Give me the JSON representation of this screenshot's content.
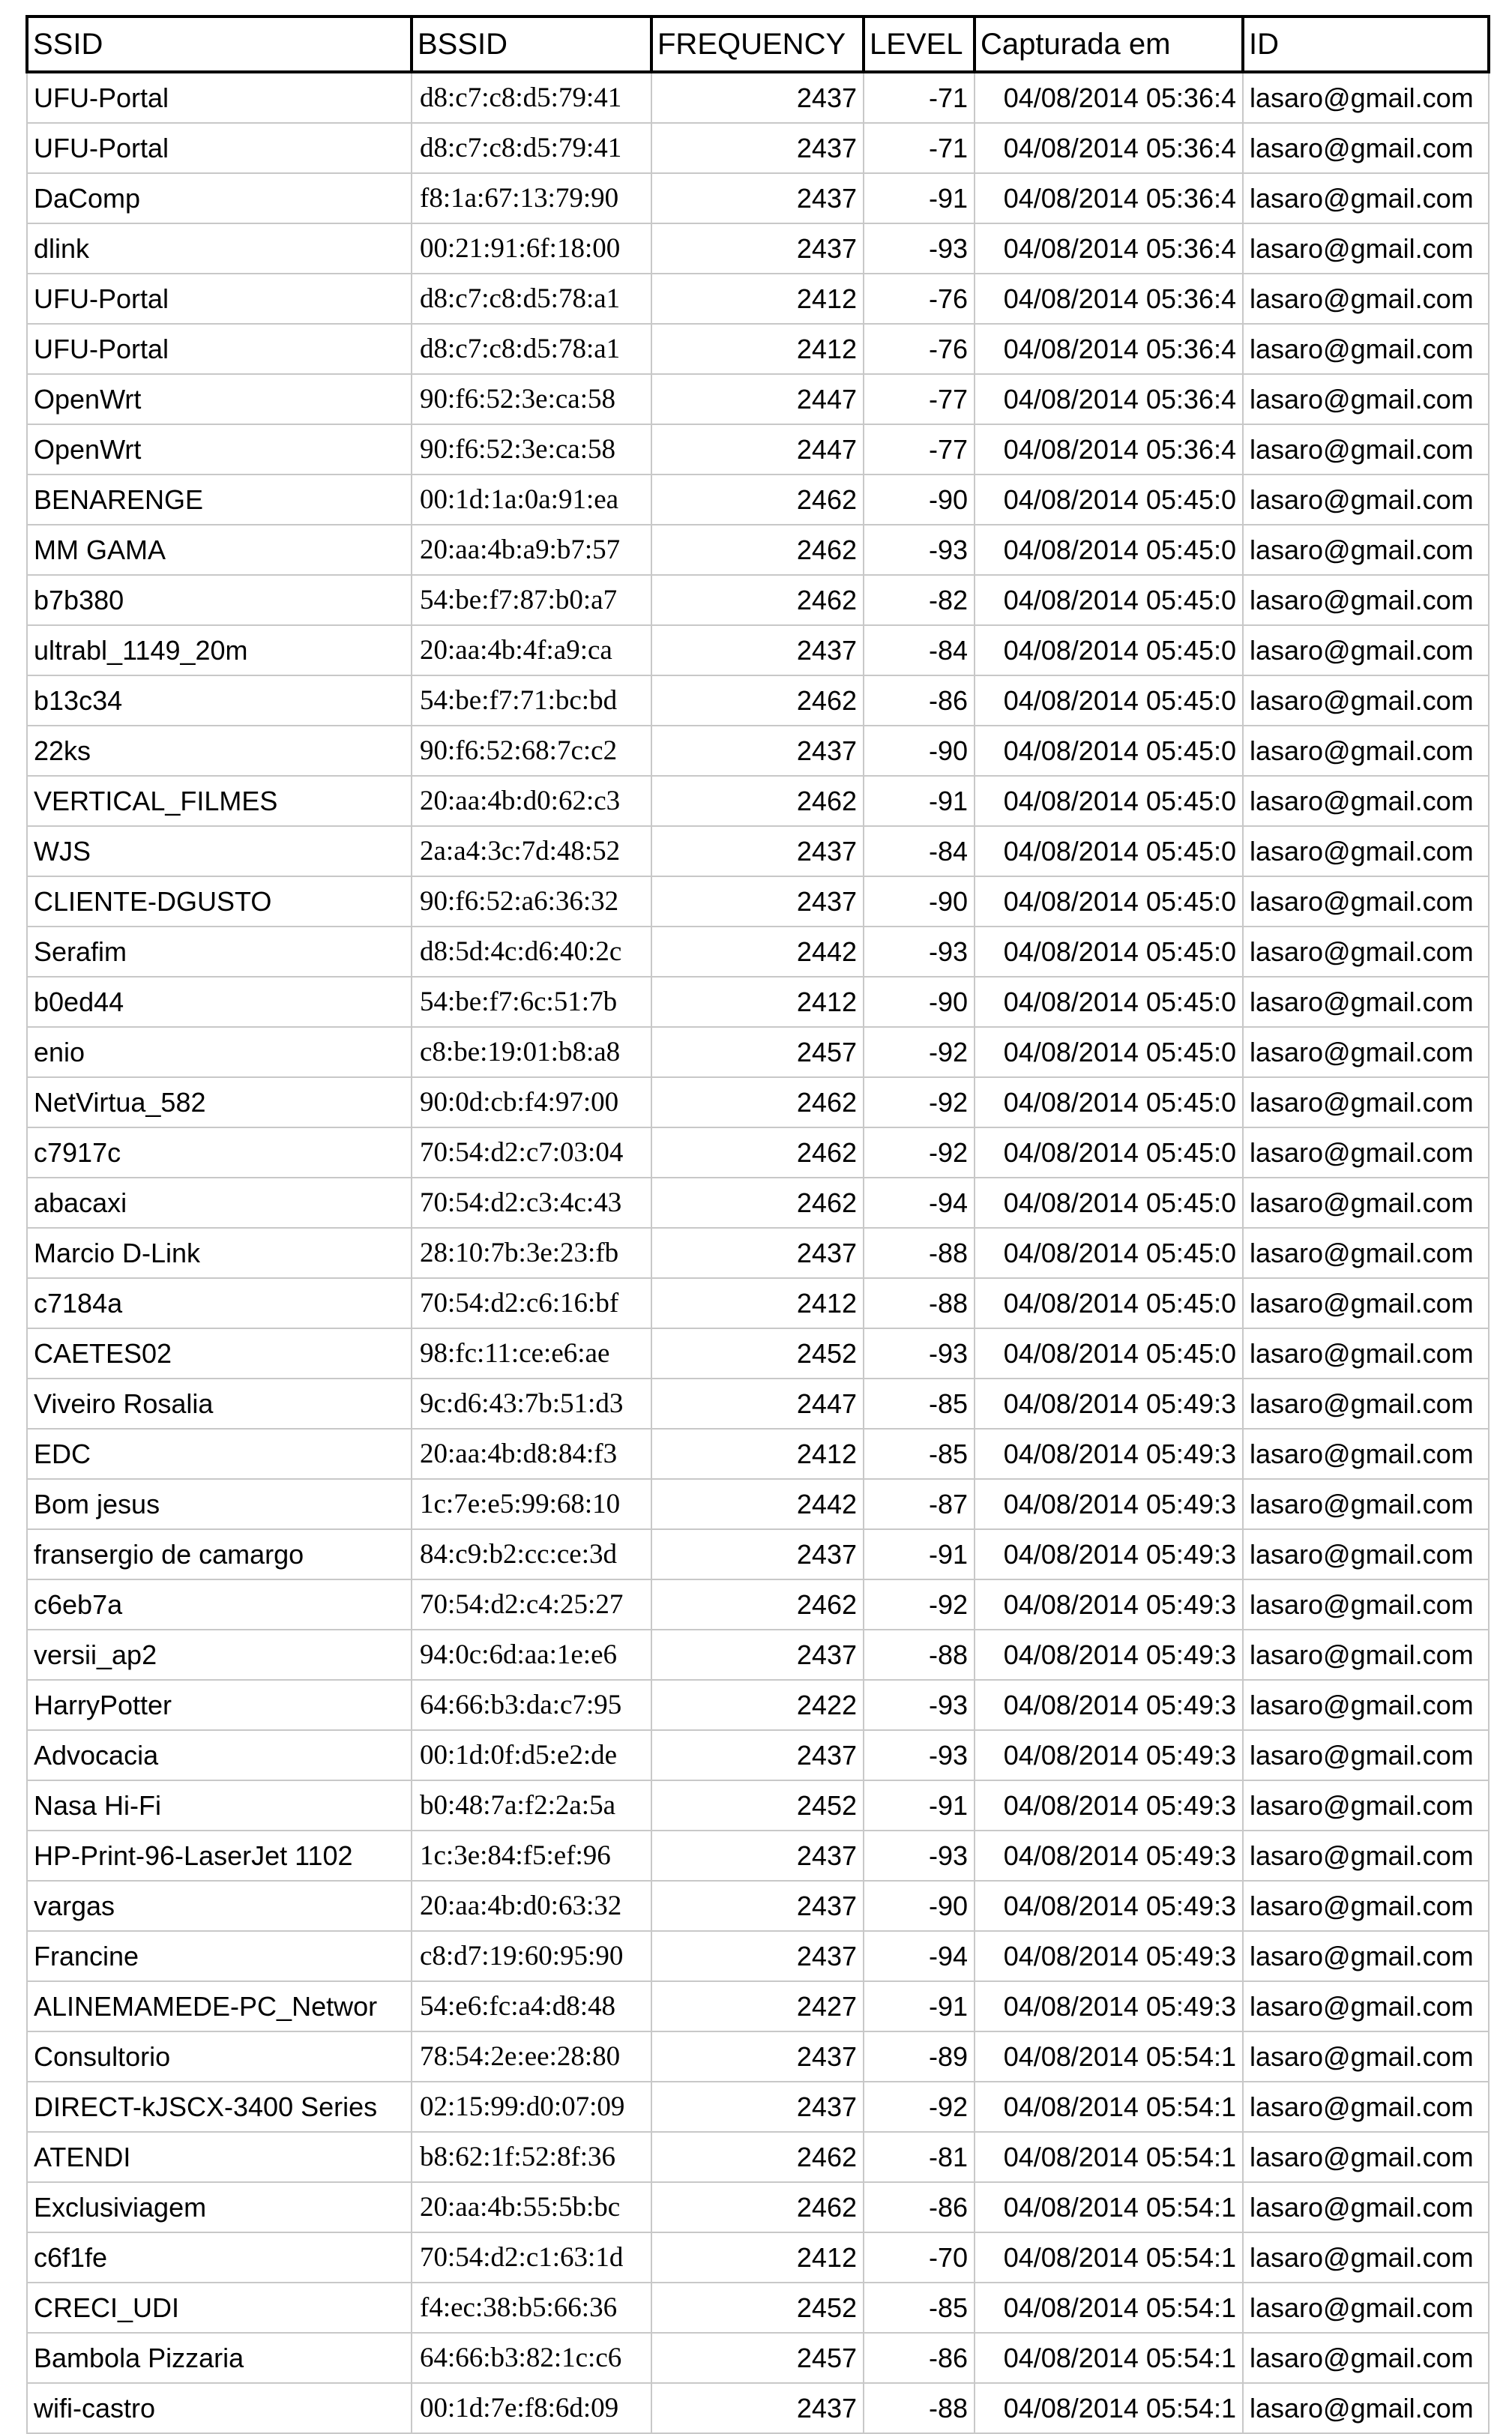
{
  "headers": {
    "ssid": "SSID",
    "bssid": "BSSID",
    "frequency": "FREQUENCY",
    "level": "LEVEL",
    "captured": "Capturada em",
    "id": "ID"
  },
  "rows": [
    [
      "UFU-Portal",
      "d8:c7:c8:d5:79:41",
      "2437",
      "-71",
      "04/08/2014 05:36:4",
      "lasaro@gmail.com"
    ],
    [
      "UFU-Portal",
      "d8:c7:c8:d5:79:41",
      "2437",
      "-71",
      "04/08/2014 05:36:4",
      "lasaro@gmail.com"
    ],
    [
      "DaComp",
      "f8:1a:67:13:79:90",
      "2437",
      "-91",
      "04/08/2014 05:36:4",
      "lasaro@gmail.com"
    ],
    [
      "dlink",
      "00:21:91:6f:18:00",
      "2437",
      "-93",
      "04/08/2014 05:36:4",
      "lasaro@gmail.com"
    ],
    [
      "UFU-Portal",
      "d8:c7:c8:d5:78:a1",
      "2412",
      "-76",
      "04/08/2014 05:36:4",
      "lasaro@gmail.com"
    ],
    [
      "UFU-Portal",
      "d8:c7:c8:d5:78:a1",
      "2412",
      "-76",
      "04/08/2014 05:36:4",
      "lasaro@gmail.com"
    ],
    [
      "OpenWrt",
      "90:f6:52:3e:ca:58",
      "2447",
      "-77",
      "04/08/2014 05:36:4",
      "lasaro@gmail.com"
    ],
    [
      "OpenWrt",
      "90:f6:52:3e:ca:58",
      "2447",
      "-77",
      "04/08/2014 05:36:4",
      "lasaro@gmail.com"
    ],
    [
      "BENARENGE",
      "00:1d:1a:0a:91:ea",
      "2462",
      "-90",
      "04/08/2014 05:45:0",
      "lasaro@gmail.com"
    ],
    [
      "MM GAMA",
      "20:aa:4b:a9:b7:57",
      "2462",
      "-93",
      "04/08/2014 05:45:0",
      "lasaro@gmail.com"
    ],
    [
      "b7b380",
      "54:be:f7:87:b0:a7",
      "2462",
      "-82",
      "04/08/2014 05:45:0",
      "lasaro@gmail.com"
    ],
    [
      "ultrabl_1149_20m",
      "20:aa:4b:4f:a9:ca",
      "2437",
      "-84",
      "04/08/2014 05:45:0",
      "lasaro@gmail.com"
    ],
    [
      "b13c34",
      "54:be:f7:71:bc:bd",
      "2462",
      "-86",
      "04/08/2014 05:45:0",
      "lasaro@gmail.com"
    ],
    [
      "22ks",
      "90:f6:52:68:7c:c2",
      "2437",
      "-90",
      "04/08/2014 05:45:0",
      "lasaro@gmail.com"
    ],
    [
      "VERTICAL_FILMES",
      "20:aa:4b:d0:62:c3",
      "2462",
      "-91",
      "04/08/2014 05:45:0",
      "lasaro@gmail.com"
    ],
    [
      "WJS",
      "2a:a4:3c:7d:48:52",
      "2437",
      "-84",
      "04/08/2014 05:45:0",
      "lasaro@gmail.com"
    ],
    [
      "CLIENTE-DGUSTO",
      "90:f6:52:a6:36:32",
      "2437",
      "-90",
      "04/08/2014 05:45:0",
      "lasaro@gmail.com"
    ],
    [
      "Serafim",
      "d8:5d:4c:d6:40:2c",
      "2442",
      "-93",
      "04/08/2014 05:45:0",
      "lasaro@gmail.com"
    ],
    [
      "b0ed44",
      "54:be:f7:6c:51:7b",
      "2412",
      "-90",
      "04/08/2014 05:45:0",
      "lasaro@gmail.com"
    ],
    [
      "enio",
      "c8:be:19:01:b8:a8",
      "2457",
      "-92",
      "04/08/2014 05:45:0",
      "lasaro@gmail.com"
    ],
    [
      "NetVirtua_582",
      "90:0d:cb:f4:97:00",
      "2462",
      "-92",
      "04/08/2014 05:45:0",
      "lasaro@gmail.com"
    ],
    [
      "c7917c",
      "70:54:d2:c7:03:04",
      "2462",
      "-92",
      "04/08/2014 05:45:0",
      "lasaro@gmail.com"
    ],
    [
      "abacaxi",
      "70:54:d2:c3:4c:43",
      "2462",
      "-94",
      "04/08/2014 05:45:0",
      "lasaro@gmail.com"
    ],
    [
      "Marcio D-Link",
      "28:10:7b:3e:23:fb",
      "2437",
      "-88",
      "04/08/2014 05:45:0",
      "lasaro@gmail.com"
    ],
    [
      "c7184a",
      "70:54:d2:c6:16:bf",
      "2412",
      "-88",
      "04/08/2014 05:45:0",
      "lasaro@gmail.com"
    ],
    [
      "CAETES02",
      "98:fc:11:ce:e6:ae",
      "2452",
      "-93",
      "04/08/2014 05:45:0",
      "lasaro@gmail.com"
    ],
    [
      "Viveiro Rosalia",
      "9c:d6:43:7b:51:d3",
      "2447",
      "-85",
      "04/08/2014 05:49:3",
      "lasaro@gmail.com"
    ],
    [
      "EDC",
      "20:aa:4b:d8:84:f3",
      "2412",
      "-85",
      "04/08/2014 05:49:3",
      "lasaro@gmail.com"
    ],
    [
      "Bom jesus",
      "1c:7e:e5:99:68:10",
      "2442",
      "-87",
      "04/08/2014 05:49:3",
      "lasaro@gmail.com"
    ],
    [
      "fransergio de camargo",
      "84:c9:b2:cc:ce:3d",
      "2437",
      "-91",
      "04/08/2014 05:49:3",
      "lasaro@gmail.com"
    ],
    [
      "c6eb7a",
      "70:54:d2:c4:25:27",
      "2462",
      "-92",
      "04/08/2014 05:49:3",
      "lasaro@gmail.com"
    ],
    [
      "versii_ap2",
      "94:0c:6d:aa:1e:e6",
      "2437",
      "-88",
      "04/08/2014 05:49:3",
      "lasaro@gmail.com"
    ],
    [
      "HarryPotter",
      "64:66:b3:da:c7:95",
      "2422",
      "-93",
      "04/08/2014 05:49:3",
      "lasaro@gmail.com"
    ],
    [
      "Advocacia",
      "00:1d:0f:d5:e2:de",
      "2437",
      "-93",
      "04/08/2014 05:49:3",
      "lasaro@gmail.com"
    ],
    [
      "Nasa Hi-Fi",
      "b0:48:7a:f2:2a:5a",
      "2452",
      "-91",
      "04/08/2014 05:49:3",
      "lasaro@gmail.com"
    ],
    [
      "HP-Print-96-LaserJet 1102",
      "1c:3e:84:f5:ef:96",
      "2437",
      "-93",
      "04/08/2014 05:49:3",
      "lasaro@gmail.com"
    ],
    [
      "vargas",
      "20:aa:4b:d0:63:32",
      "2437",
      "-90",
      "04/08/2014 05:49:3",
      "lasaro@gmail.com"
    ],
    [
      "Francine",
      "c8:d7:19:60:95:90",
      "2437",
      "-94",
      "04/08/2014 05:49:3",
      "lasaro@gmail.com"
    ],
    [
      "ALINEMAMEDE-PC_Networ",
      "54:e6:fc:a4:d8:48",
      "2427",
      "-91",
      "04/08/2014 05:49:3",
      "lasaro@gmail.com"
    ],
    [
      "Consultorio",
      "78:54:2e:ee:28:80",
      "2437",
      "-89",
      "04/08/2014 05:54:1",
      "lasaro@gmail.com"
    ],
    [
      "DIRECT-kJSCX-3400 Series",
      "02:15:99:d0:07:09",
      "2437",
      "-92",
      "04/08/2014 05:54:1",
      "lasaro@gmail.com"
    ],
    [
      "ATENDI",
      "b8:62:1f:52:8f:36",
      "2462",
      "-81",
      "04/08/2014 05:54:1",
      "lasaro@gmail.com"
    ],
    [
      "Exclusiviagem",
      "20:aa:4b:55:5b:bc",
      "2462",
      "-86",
      "04/08/2014 05:54:1",
      "lasaro@gmail.com"
    ],
    [
      "c6f1fe",
      "70:54:d2:c1:63:1d",
      "2412",
      "-70",
      "04/08/2014 05:54:1",
      "lasaro@gmail.com"
    ],
    [
      "CRECI_UDI",
      "f4:ec:38:b5:66:36",
      "2452",
      "-85",
      "04/08/2014 05:54:1",
      "lasaro@gmail.com"
    ],
    [
      "Bambola Pizzaria",
      "64:66:b3:82:1c:c6",
      "2457",
      "-86",
      "04/08/2014 05:54:1",
      "lasaro@gmail.com"
    ],
    [
      "wifi-castro",
      "00:1d:7e:f8:6d:09",
      "2437",
      "-88",
      "04/08/2014 05:54:1",
      "lasaro@gmail.com"
    ]
  ]
}
